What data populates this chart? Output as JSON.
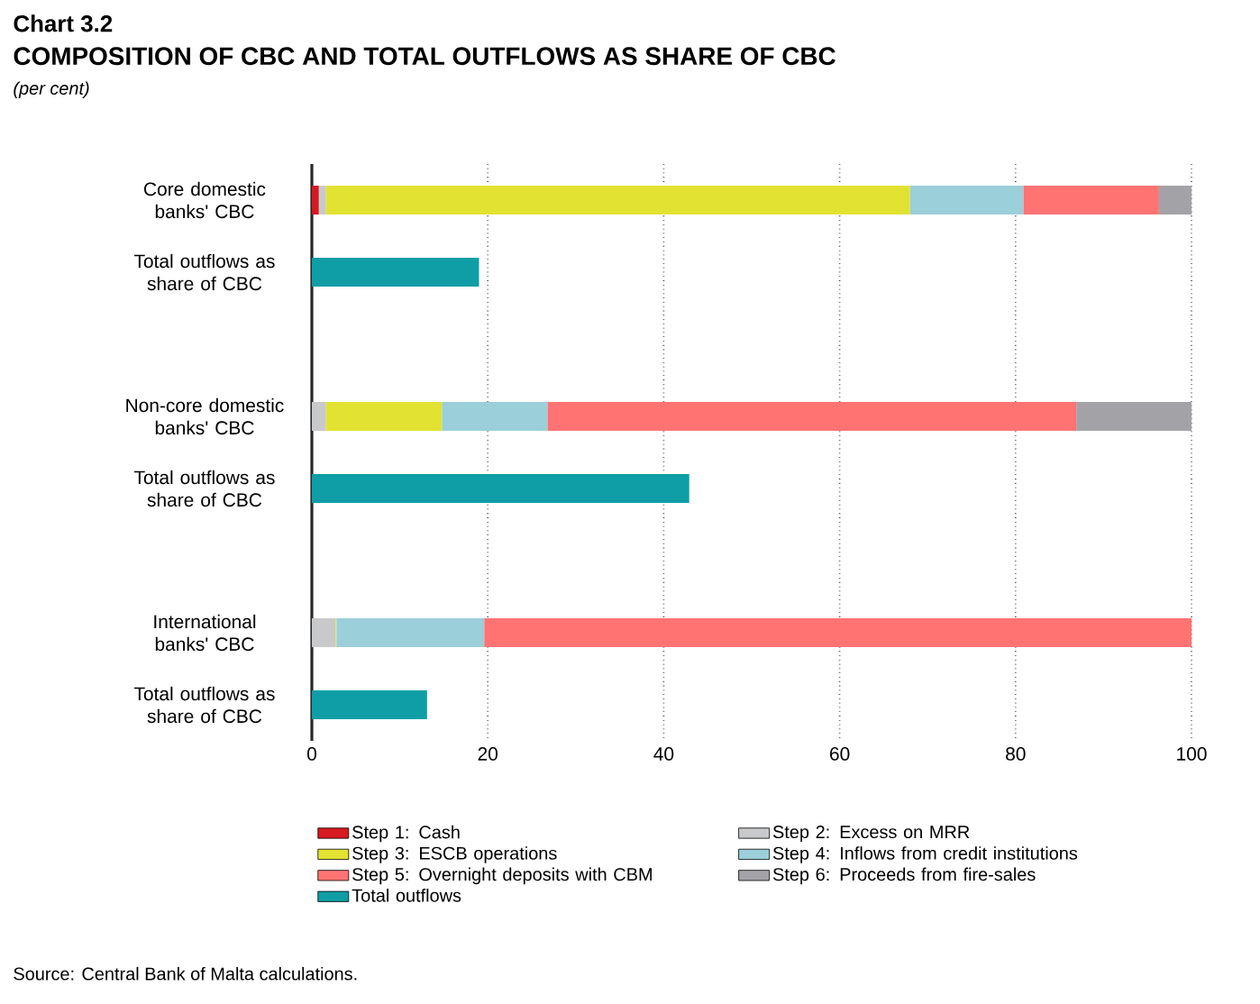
{
  "chart_data": {
    "type": "bar",
    "orientation": "horizontal",
    "stacked": true,
    "title": "Chart 3.2",
    "subtitle": "COMPOSITION OF CBC AND TOTAL OUTFLOWS AS SHARE OF CBC",
    "annotations": [
      "(per cent)",
      "Source: Central Bank of Malta calculations."
    ],
    "categories": [
      "Core domestic banks' CBC",
      "Total outflows as share of CBC",
      null,
      "Non-core domestic banks' CBC",
      "Total outflows as share of CBC",
      null,
      "International banks' CBC",
      "Total outflows as share of CBC"
    ],
    "series": [
      {
        "name": "Step 1: Cash",
        "color": "#d71920",
        "values": [
          0.8,
          null,
          null,
          null,
          null,
          null,
          null,
          null
        ]
      },
      {
        "name": "Step 2: Excess on MRR",
        "color": "#c8c9cb",
        "values": [
          0.8,
          null,
          null,
          1.6,
          null,
          null,
          2.7,
          null
        ]
      },
      {
        "name": "Step 3: ESCB operations",
        "color": "#e2e232",
        "values": [
          66.4,
          null,
          null,
          13.2,
          null,
          null,
          0.1,
          null
        ]
      },
      {
        "name": "Step 4: Inflows from credit institutions",
        "color": "#9bcfd9",
        "values": [
          12.9,
          null,
          null,
          12.0,
          null,
          null,
          16.8,
          null
        ]
      },
      {
        "name": "Step 5: Overnight deposits with CBM",
        "color": "#ff7373",
        "values": [
          15.4,
          null,
          null,
          60.1,
          null,
          null,
          80.4,
          null
        ]
      },
      {
        "name": "Step 6: Proceeds from fire-sales",
        "color": "#a3a3a7",
        "values": [
          3.7,
          null,
          null,
          13.1,
          null,
          null,
          null,
          null
        ]
      },
      {
        "name": "Total outflows",
        "color": "#0f9ea5",
        "values": [
          null,
          19.0,
          null,
          null,
          42.9,
          null,
          null,
          13.1
        ]
      }
    ],
    "xlim": [
      0,
      100
    ],
    "xticks": [
      0,
      20,
      40,
      60,
      80,
      100
    ],
    "grid": "x",
    "legend": "bottom"
  }
}
